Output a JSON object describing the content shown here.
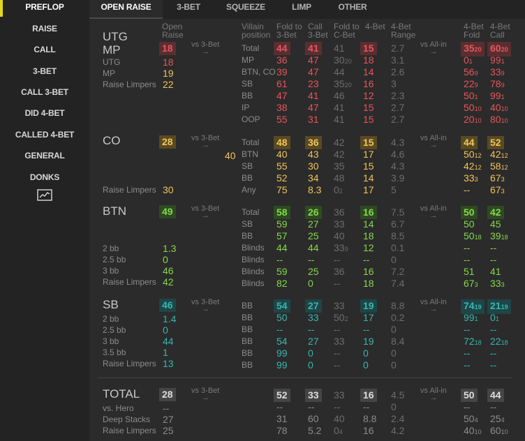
{
  "sidebar": {
    "items": [
      "PREFLOP",
      "RAISE",
      "CALL",
      "3-BET",
      "CALL 3-BET",
      "DID 4-BET",
      "CALLED 4-BET",
      "GENERAL",
      "DONKS"
    ],
    "active": "PREFLOP",
    "chart_icon": "line-chart-icon",
    "accent": "#e3d71b"
  },
  "tabs": [
    "OPEN RAISE",
    "3-BET",
    "SQUEEZE",
    "LIMP",
    "OTHER"
  ],
  "headers": {
    "open_raise": [
      "Open",
      "Raise"
    ],
    "villain_position": [
      "Villain",
      "position"
    ],
    "fold_to_3bet": [
      "Fold to",
      "3-Bet"
    ],
    "call_3bet": [
      "Call",
      "3-Bet"
    ],
    "fold_to_cbet": [
      "Fold to",
      "C-Bet"
    ],
    "four_bet": "4-Bet",
    "four_bet_range": [
      "4-Bet",
      "Range"
    ],
    "four_bet_fold": [
      "4-Bet",
      "Fold"
    ],
    "four_bet_call": [
      "4-Bet",
      "Call"
    ]
  },
  "vs_3bet": "vs 3-Bet",
  "vs_allin": "vs All-in",
  "arrow": "→",
  "sections": {
    "utg_mp": {
      "title": [
        "UTG",
        "MP"
      ],
      "open": "18",
      "sub": [
        [
          "UTG",
          "18"
        ],
        [
          "MP",
          "19"
        ],
        [
          "Raise Limpers",
          "22"
        ]
      ],
      "rows": [
        [
          "Total",
          "44",
          "41",
          "41",
          "15",
          "2.7",
          "35",
          "20",
          "60",
          "20"
        ],
        [
          "MP",
          "36",
          "47",
          "30",
          "18",
          "3.1",
          "0",
          "1",
          "99",
          "1"
        ],
        [
          "BTN, CO",
          "39",
          "47",
          "44",
          "14",
          "2.6",
          "56",
          "9",
          "33",
          "9"
        ],
        [
          "SB",
          "61",
          "23",
          "35",
          "16",
          "3",
          "22",
          "9",
          "78",
          "9"
        ],
        [
          "BB",
          "47",
          "41",
          "46",
          "12",
          "2.3",
          "50",
          "1",
          "99",
          "1"
        ],
        [
          "IP",
          "38",
          "47",
          "41",
          "15",
          "2.7",
          "50",
          "10",
          "40",
          "10"
        ],
        [
          "OOP",
          "55",
          "31",
          "41",
          "15",
          "2.7",
          "20",
          "10",
          "80",
          "10"
        ]
      ],
      "cbet_small": [
        "",
        "",
        "20",
        "",
        "20",
        "",
        "",
        ""
      ]
    },
    "co": {
      "title": "CO",
      "open": "28",
      "side_value": "40",
      "sub": [
        [
          "Raise Limpers",
          "30"
        ]
      ],
      "rows": [
        [
          "Total",
          "48",
          "36",
          "42",
          "15",
          "4.3",
          "44",
          "",
          "52",
          ""
        ],
        [
          "BTN",
          "40",
          "43",
          "42",
          "17",
          "4.6",
          "50",
          "12",
          "42",
          "12"
        ],
        [
          "SB",
          "55",
          "30",
          "35",
          "15",
          "4.3",
          "42",
          "12",
          "58",
          "12"
        ],
        [
          "BB",
          "52",
          "34",
          "48",
          "14",
          "3.9",
          "33",
          "3",
          "67",
          "3"
        ],
        [
          "Any",
          "75",
          "8.3",
          "0",
          "17",
          "5",
          "--",
          "",
          "67",
          "3"
        ]
      ],
      "any_cbet_small": "2"
    },
    "btn": {
      "title": "BTN",
      "open": "49",
      "sub": [
        [
          "2 bb",
          "1.3"
        ],
        [
          "2.5 bb",
          "0"
        ],
        [
          "3 bb",
          "46"
        ],
        [
          "Raise Limpers",
          "42"
        ]
      ],
      "rows": [
        [
          "Total",
          "58",
          "26",
          "36",
          "16",
          "7.5",
          "50",
          "",
          "42",
          ""
        ],
        [
          "SB",
          "59",
          "27",
          "33",
          "14",
          "6.7",
          "50",
          "",
          "45",
          ""
        ],
        [
          "BB",
          "57",
          "25",
          "40",
          "18",
          "8.5",
          "50",
          "18",
          "39",
          "18"
        ],
        [
          "Blinds",
          "44",
          "44",
          "33",
          "12",
          "0.1",
          "--",
          "",
          "--",
          ""
        ],
        [
          "Blinds",
          "--",
          "--",
          "--",
          "--",
          "0",
          "--",
          "",
          "--",
          ""
        ],
        [
          "Blinds",
          "59",
          "25",
          "36",
          "16",
          "7.2",
          "51",
          "",
          "41",
          ""
        ],
        [
          "Blinds",
          "82",
          "0",
          "--",
          "18",
          "7.4",
          "67",
          "3",
          "33",
          "3"
        ]
      ],
      "blinds_cbet_small": "9"
    },
    "sb": {
      "title": "SB",
      "open": "46",
      "sub": [
        [
          "2 bb",
          "1.4"
        ],
        [
          "2.5 bb",
          "0"
        ],
        [
          "3 bb",
          "44"
        ],
        [
          "3.5 bb",
          "1"
        ],
        [
          "Raise Limpers",
          "13"
        ]
      ],
      "rows": [
        [
          "BB",
          "54",
          "27",
          "33",
          "19",
          "8.8",
          "74",
          "19",
          "21",
          "19"
        ],
        [
          "BB",
          "50",
          "33",
          "50",
          "17",
          "0.2",
          "99",
          "1",
          "0",
          "1"
        ],
        [
          "BB",
          "--",
          "--",
          "--",
          "--",
          "0",
          "--",
          "",
          "--",
          ""
        ],
        [
          "BB",
          "54",
          "27",
          "33",
          "19",
          "8.4",
          "72",
          "18",
          "22",
          "18"
        ],
        [
          "BB",
          "99",
          "0",
          "--",
          "0",
          "0",
          "--",
          "",
          "--",
          ""
        ],
        [
          "BB",
          "99",
          "0",
          "--",
          "0",
          "0",
          "--",
          "",
          "--",
          ""
        ]
      ],
      "smalls": {
        "r1": [
          "12",
          "12",
          "2",
          "12"
        ],
        "r4": [
          "1",
          "1",
          "",
          "1"
        ],
        "r5": [
          "3",
          "3",
          "",
          "3"
        ]
      }
    },
    "total": {
      "title": "TOTAL",
      "open": "28",
      "sub": [
        [
          "vs. Hero",
          "--"
        ],
        [
          "Deep Stacks",
          "27"
        ],
        [
          "Raise Limpers",
          "25"
        ]
      ],
      "rows": [
        [
          "",
          "52",
          "33",
          "33",
          "16",
          "4.5",
          "50",
          "",
          "44",
          ""
        ],
        [
          "",
          "--",
          "--",
          "--",
          "--",
          "0",
          "--",
          "",
          "--",
          ""
        ],
        [
          "",
          "31",
          "60",
          "40",
          "8.8",
          "2.4",
          "50",
          "4",
          "25",
          "4"
        ],
        [
          "",
          "78",
          "5.2",
          "0",
          "16",
          "4.2",
          "40",
          "10",
          "60",
          "10"
        ]
      ],
      "r4_cbet_small": "4"
    }
  },
  "colors": {
    "red": "#e8555a",
    "orange": "#f1c55a",
    "green": "#84d94a",
    "teal": "#35b8b0",
    "white": "#dedede"
  }
}
